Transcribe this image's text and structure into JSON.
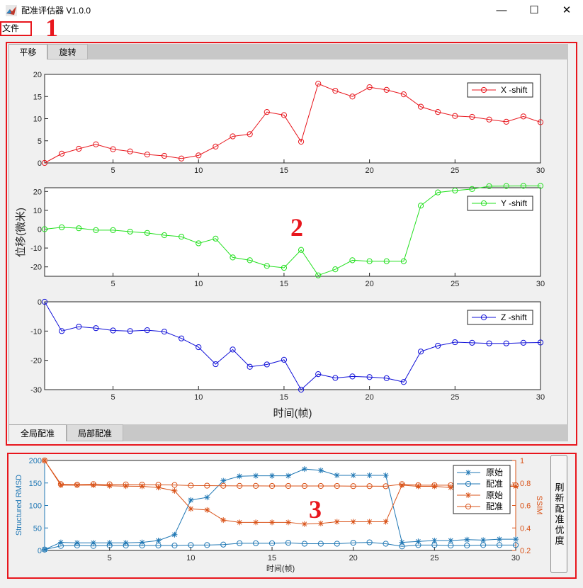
{
  "window": {
    "title": "配准评估器 V1.0.0",
    "minimize": "—",
    "maximize": "☐",
    "close": "✕"
  },
  "menu": {
    "file": "文件"
  },
  "annotations": {
    "n1": "1",
    "n2": "2",
    "n3": "3"
  },
  "top_tabs": [
    {
      "label": "平移",
      "active": true
    },
    {
      "label": "旋转",
      "active": false
    }
  ],
  "bottom_tabs": [
    {
      "label": "全局配准",
      "active": true
    },
    {
      "label": "局部配准",
      "active": false
    }
  ],
  "refresh_button": {
    "label": "刷新配准优度"
  },
  "colors": {
    "x": "#e8161d",
    "y": "#22e01e",
    "z": "#1010d8",
    "blue": "#1f77b4",
    "orange": "#d95319",
    "annotation": "#e8161d"
  },
  "chart_data": [
    {
      "type": "line",
      "name": "X -shift",
      "x": [
        1,
        2,
        3,
        4,
        5,
        6,
        7,
        8,
        9,
        10,
        11,
        12,
        13,
        14,
        15,
        16,
        17,
        18,
        19,
        20,
        21,
        22,
        23,
        24,
        25,
        26,
        27,
        28,
        29,
        30
      ],
      "y": [
        0,
        2.1,
        3.2,
        4.2,
        3.1,
        2.6,
        1.9,
        1.6,
        1.0,
        1.7,
        3.7,
        6.0,
        6.5,
        11.5,
        10.8,
        4.8,
        17.9,
        16.3,
        15.0,
        17.1,
        16.5,
        15.5,
        12.7,
        11.5,
        10.6,
        10.4,
        9.8,
        9.3,
        10.5,
        9.2
      ],
      "xlim": [
        1,
        30
      ],
      "ylim": [
        0,
        20
      ],
      "xticks": [
        "5",
        "10",
        "15",
        "20",
        "25",
        "30"
      ],
      "yticks": [
        "0",
        "5",
        "10",
        "15",
        "20"
      ],
      "legend": "top-right",
      "ylabel": "",
      "xlabel": ""
    },
    {
      "type": "line",
      "name": "Y -shift",
      "x": [
        1,
        2,
        3,
        4,
        5,
        6,
        7,
        8,
        9,
        10,
        11,
        12,
        13,
        14,
        15,
        16,
        17,
        18,
        19,
        20,
        21,
        22,
        23,
        24,
        25,
        26,
        27,
        28,
        29,
        30
      ],
      "y": [
        0,
        1,
        0.5,
        -0.5,
        -0.5,
        -1.3,
        -2,
        -3.2,
        -4,
        -7.5,
        -5,
        -15,
        -16.5,
        -19.5,
        -20.5,
        -11,
        -24.5,
        -21.3,
        -16.5,
        -17,
        -17,
        -17,
        12.5,
        19.5,
        20.5,
        21.3,
        22.8,
        22.9,
        23,
        23
      ],
      "xlim": [
        1,
        30
      ],
      "ylim": [
        -25,
        22
      ],
      "xticks": [
        "5",
        "10",
        "15",
        "20",
        "25",
        "30"
      ],
      "yticks": [
        "-20",
        "-10",
        "0",
        "10",
        "20"
      ],
      "legend": "top-right",
      "ylabel": "位移(微米)",
      "xlabel": ""
    },
    {
      "type": "line",
      "name": "Z -shift",
      "x": [
        1,
        2,
        3,
        4,
        5,
        6,
        7,
        8,
        9,
        10,
        11,
        12,
        13,
        14,
        15,
        16,
        17,
        18,
        19,
        20,
        21,
        22,
        23,
        24,
        25,
        26,
        27,
        28,
        29,
        30
      ],
      "y": [
        0,
        -10,
        -8.5,
        -9,
        -9.8,
        -10,
        -9.7,
        -10.2,
        -12.5,
        -15.5,
        -21.3,
        -16.3,
        -22.2,
        -21.4,
        -19.8,
        -30,
        -24.7,
        -26,
        -25.5,
        -25.7,
        -26.1,
        -27.4,
        -17,
        -15,
        -13.8,
        -14,
        -14.2,
        -14.2,
        -14,
        -13.9
      ],
      "xlim": [
        1,
        30
      ],
      "ylim": [
        -30,
        0
      ],
      "xticks": [
        "5",
        "10",
        "15",
        "20",
        "25",
        "30"
      ],
      "yticks": [
        "-30",
        "-20",
        "-10",
        "0"
      ],
      "legend": "top-right",
      "ylabel": "",
      "xlabel": "时间(帧)"
    },
    {
      "type": "line",
      "dual_axis": true,
      "x": [
        1,
        2,
        3,
        4,
        5,
        6,
        7,
        8,
        9,
        10,
        11,
        12,
        13,
        14,
        15,
        16,
        17,
        18,
        19,
        20,
        21,
        22,
        23,
        24,
        25,
        26,
        27,
        28,
        29,
        30
      ],
      "left_axis": {
        "label": "Structured RMSD",
        "ylim": [
          0,
          200
        ],
        "yticks": [
          "0",
          "50",
          "100",
          "150",
          "200"
        ]
      },
      "right_axis": {
        "label": "SSIM",
        "ylim": [
          0.2,
          1
        ],
        "yticks": [
          "0.2",
          "0.4",
          "0.6",
          "0.8",
          "1"
        ]
      },
      "series": [
        {
          "name": "原始",
          "axis": "left",
          "marker": "*",
          "values": [
            2,
            18,
            17,
            17,
            17,
            17,
            18,
            22,
            35,
            112,
            118,
            155,
            165,
            166,
            166,
            166,
            181,
            178,
            167,
            167,
            167,
            167,
            18,
            20,
            22,
            22,
            24,
            23,
            25,
            25
          ]
        },
        {
          "name": "配准",
          "axis": "left",
          "marker": "o",
          "values": [
            2,
            10,
            11,
            10,
            11,
            11,
            11,
            11,
            11,
            12,
            12,
            13,
            16,
            16,
            16,
            17,
            15,
            15,
            15,
            17,
            18,
            15,
            9,
            12,
            12,
            11,
            11,
            12,
            12,
            12
          ]
        },
        {
          "name": "原始",
          "axis": "right",
          "marker": "*",
          "values": [
            1.0,
            0.78,
            0.78,
            0.78,
            0.775,
            0.772,
            0.77,
            0.76,
            0.73,
            0.57,
            0.56,
            0.47,
            0.45,
            0.45,
            0.45,
            0.45,
            0.435,
            0.44,
            0.455,
            0.455,
            0.455,
            0.455,
            0.78,
            0.77,
            0.77,
            0.76,
            0.76,
            0.77,
            0.77,
            0.77
          ]
        },
        {
          "name": "配准",
          "axis": "right",
          "marker": "o",
          "values": [
            1.0,
            0.79,
            0.785,
            0.79,
            0.788,
            0.787,
            0.785,
            0.784,
            0.782,
            0.777,
            0.776,
            0.775,
            0.774,
            0.774,
            0.773,
            0.773,
            0.773,
            0.773,
            0.773,
            0.772,
            0.772,
            0.771,
            0.79,
            0.78,
            0.78,
            0.78,
            0.78,
            0.78,
            0.78,
            0.78
          ]
        }
      ],
      "xlim": [
        1,
        30
      ],
      "xticks": [
        "5",
        "10",
        "15",
        "20",
        "25",
        "30"
      ],
      "xlabel": "时间(帧)",
      "legend": "top-right"
    }
  ]
}
